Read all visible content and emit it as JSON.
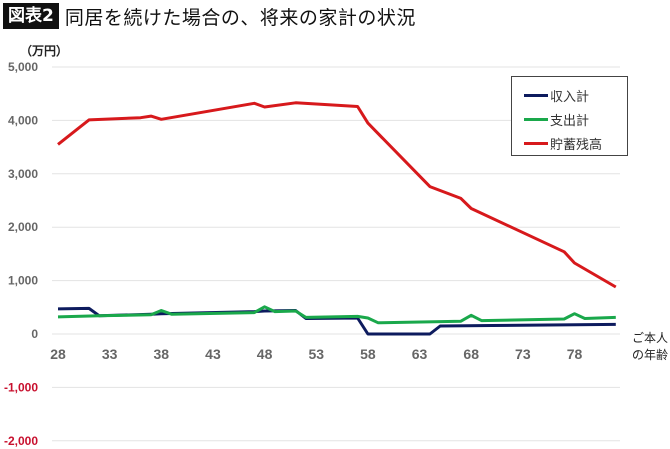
{
  "header": {
    "figure_label": "図表2",
    "title": "同居を続けた場合の、将来の家計の状況"
  },
  "unit_label": "（万円）",
  "x_axis_label_line1": "ご本人",
  "x_axis_label_line2": "の年齢",
  "legend": {
    "items": [
      {
        "label": "収入計",
        "color": "#0d1b5e"
      },
      {
        "label": "支出計",
        "color": "#1aa84b"
      },
      {
        "label": "貯蓄残高",
        "color": "#d7191c"
      }
    ]
  },
  "y_ticks": [
    {
      "label": "5,000",
      "value": 5000
    },
    {
      "label": "4,000",
      "value": 4000
    },
    {
      "label": "3,000",
      "value": 3000
    },
    {
      "label": "2,000",
      "value": 2000
    },
    {
      "label": "1,000",
      "value": 1000
    },
    {
      "label": "0",
      "value": 0
    },
    {
      "label": "-1,000",
      "value": -1000
    },
    {
      "label": "-2,000",
      "value": -2000
    }
  ],
  "x_ticks": [
    "28",
    "33",
    "38",
    "43",
    "48",
    "53",
    "58",
    "63",
    "68",
    "73",
    "78"
  ],
  "chart_data": {
    "type": "line",
    "title": "同居を続けた場合の、将来の家計の状況",
    "xlabel": "ご本人の年齢",
    "ylabel": "（万円）",
    "xlim": [
      28,
      82
    ],
    "ylim": [
      -2000,
      5000
    ],
    "grid": true,
    "legend_position": "upper right",
    "series": [
      {
        "name": "収入計",
        "color": "#0d1b5e",
        "points": [
          [
            28,
            470
          ],
          [
            31,
            480
          ],
          [
            32,
            340
          ],
          [
            37,
            370
          ],
          [
            38,
            380
          ],
          [
            47,
            420
          ],
          [
            48,
            430
          ],
          [
            51,
            440
          ],
          [
            52,
            290
          ],
          [
            57,
            300
          ],
          [
            58,
            0
          ],
          [
            64,
            0
          ],
          [
            65,
            150
          ],
          [
            70,
            160
          ],
          [
            82,
            180
          ]
        ]
      },
      {
        "name": "支出計",
        "color": "#1aa84b",
        "points": [
          [
            28,
            320
          ],
          [
            32,
            340
          ],
          [
            37,
            360
          ],
          [
            38,
            440
          ],
          [
            39,
            370
          ],
          [
            47,
            400
          ],
          [
            48,
            510
          ],
          [
            49,
            420
          ],
          [
            51,
            430
          ],
          [
            52,
            310
          ],
          [
            57,
            330
          ],
          [
            58,
            300
          ],
          [
            59,
            210
          ],
          [
            67,
            240
          ],
          [
            68,
            350
          ],
          [
            69,
            250
          ],
          [
            77,
            280
          ],
          [
            78,
            380
          ],
          [
            79,
            290
          ],
          [
            82,
            310
          ]
        ]
      },
      {
        "name": "貯蓄残高",
        "color": "#d7191c",
        "points": [
          [
            28,
            3550
          ],
          [
            31,
            4010
          ],
          [
            36,
            4050
          ],
          [
            37,
            4080
          ],
          [
            38,
            4020
          ],
          [
            47,
            4320
          ],
          [
            48,
            4250
          ],
          [
            51,
            4330
          ],
          [
            57,
            4260
          ],
          [
            58,
            3950
          ],
          [
            64,
            2760
          ],
          [
            67,
            2540
          ],
          [
            68,
            2350
          ],
          [
            77,
            1540
          ],
          [
            78,
            1330
          ],
          [
            82,
            880
          ]
        ]
      }
    ]
  }
}
